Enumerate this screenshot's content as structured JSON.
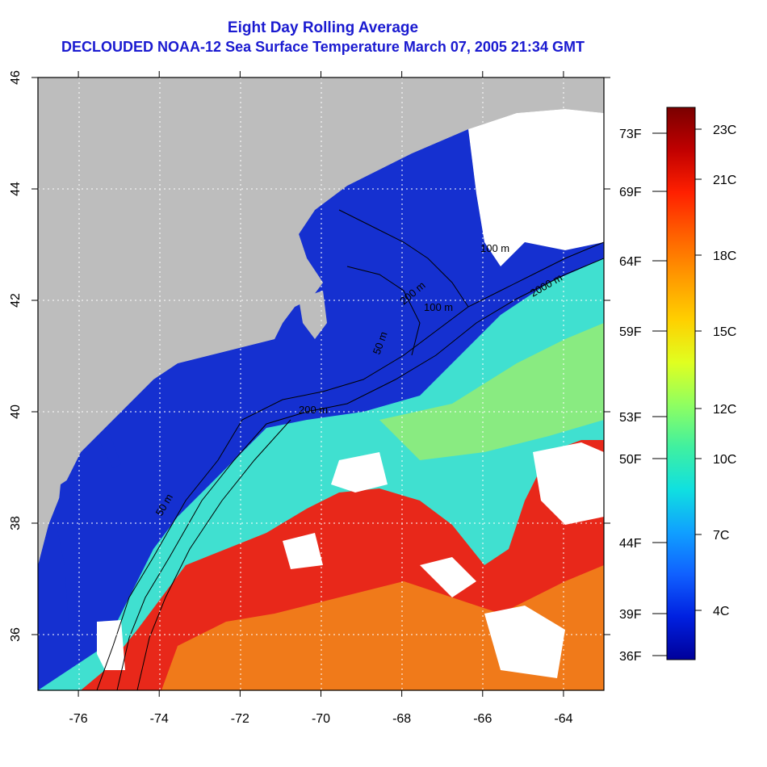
{
  "title_line1": "Eight Day Rolling Average",
  "title_line2": "DECLOUDED NOAA-12 Sea Surface Temperature March 07, 2005 21:34 GMT",
  "map": {
    "lon_range": [
      -77,
      -63
    ],
    "lat_range": [
      35,
      46
    ],
    "lon_ticks": [
      "-76",
      "-74",
      "-72",
      "-70",
      "-68",
      "-66",
      "-64"
    ],
    "lat_ticks": [
      "36",
      "38",
      "40",
      "42",
      "44",
      "46"
    ],
    "contour_labels": [
      "50 m",
      "50 m",
      "200 m",
      "100 m",
      "100 m",
      "200 m",
      "2000 m"
    ],
    "colors": {
      "land": "#bdbdbd",
      "no_data": "#ffffff",
      "cold_shelf": "#1530d0",
      "slope": "#40e0d0",
      "gulf_stream": "#e8281a",
      "warm_offshore": "#f07a1a",
      "grid": "#ffffff"
    }
  },
  "colorbar": {
    "celsius": [
      "23C",
      "21C",
      "18C",
      "15C",
      "12C",
      "10C",
      "7C",
      "4C"
    ],
    "fahrenheit": [
      "73F",
      "69F",
      "64F",
      "59F",
      "53F",
      "50F",
      "44F",
      "39F",
      "36F"
    ],
    "gradient_colors": [
      "#7a0000",
      "#c00000",
      "#ff2000",
      "#ff6000",
      "#ff9a00",
      "#ffd000",
      "#e0ff20",
      "#90ff60",
      "#40f0a0",
      "#10e0e0",
      "#10a0ff",
      "#1060ff",
      "#0020e0",
      "#00009a"
    ]
  }
}
